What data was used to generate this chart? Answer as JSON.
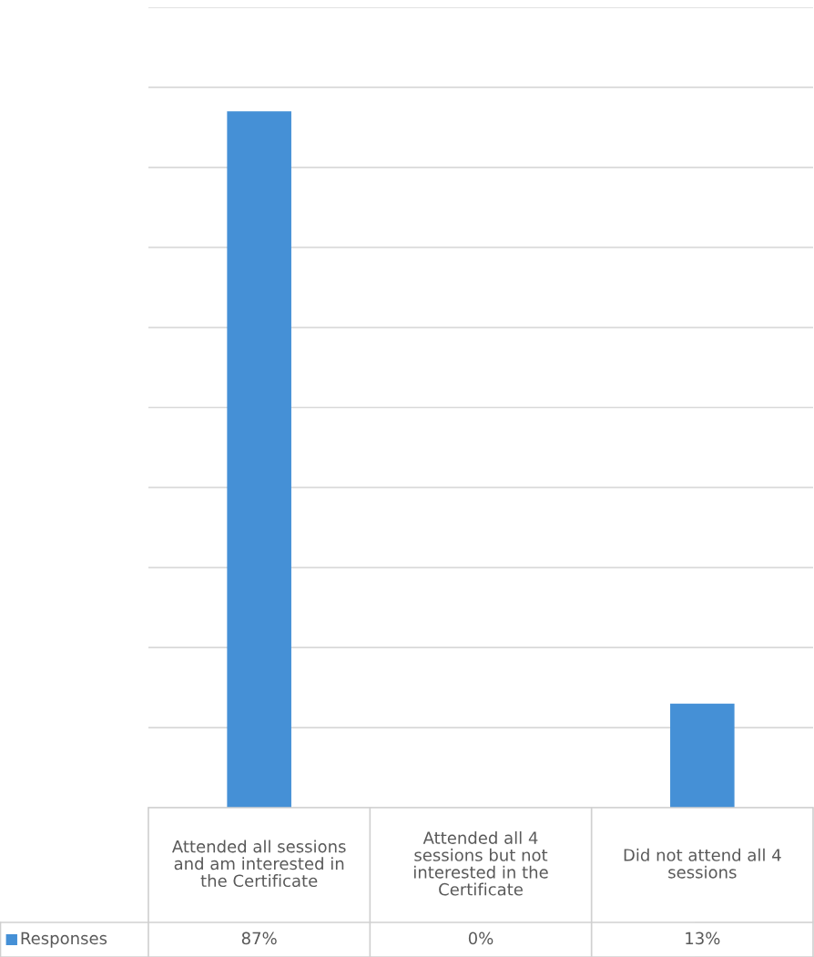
{
  "chart_data": {
    "type": "bar",
    "categories": [
      "Attended all sessions and am interested in the Certificate",
      "Attended all 4 sessions but not interested in the Certificate",
      "Did not attend all 4 sessions"
    ],
    "series": [
      {
        "name": "Responses",
        "color": "#4590d6",
        "values": [
          87,
          0,
          13
        ],
        "value_labels": [
          "87%",
          "0%",
          "13%"
        ]
      }
    ],
    "ylim": [
      0,
      100
    ],
    "yticks": [
      {
        "value": 0,
        "label": null
      },
      {
        "value": 10,
        "label": null
      },
      {
        "value": 20,
        "label": null
      },
      {
        "value": 30,
        "label": null
      },
      {
        "value": 40,
        "label": null
      },
      {
        "value": 50,
        "label": null
      },
      {
        "value": 60,
        "label": null
      },
      {
        "value": 70,
        "label": null
      },
      {
        "value": 80,
        "label": null
      },
      {
        "value": 90,
        "label": null
      },
      {
        "value": 100,
        "label": null
      }
    ],
    "grid": "y",
    "legend": "bottom",
    "tick_labels": "x"
  }
}
